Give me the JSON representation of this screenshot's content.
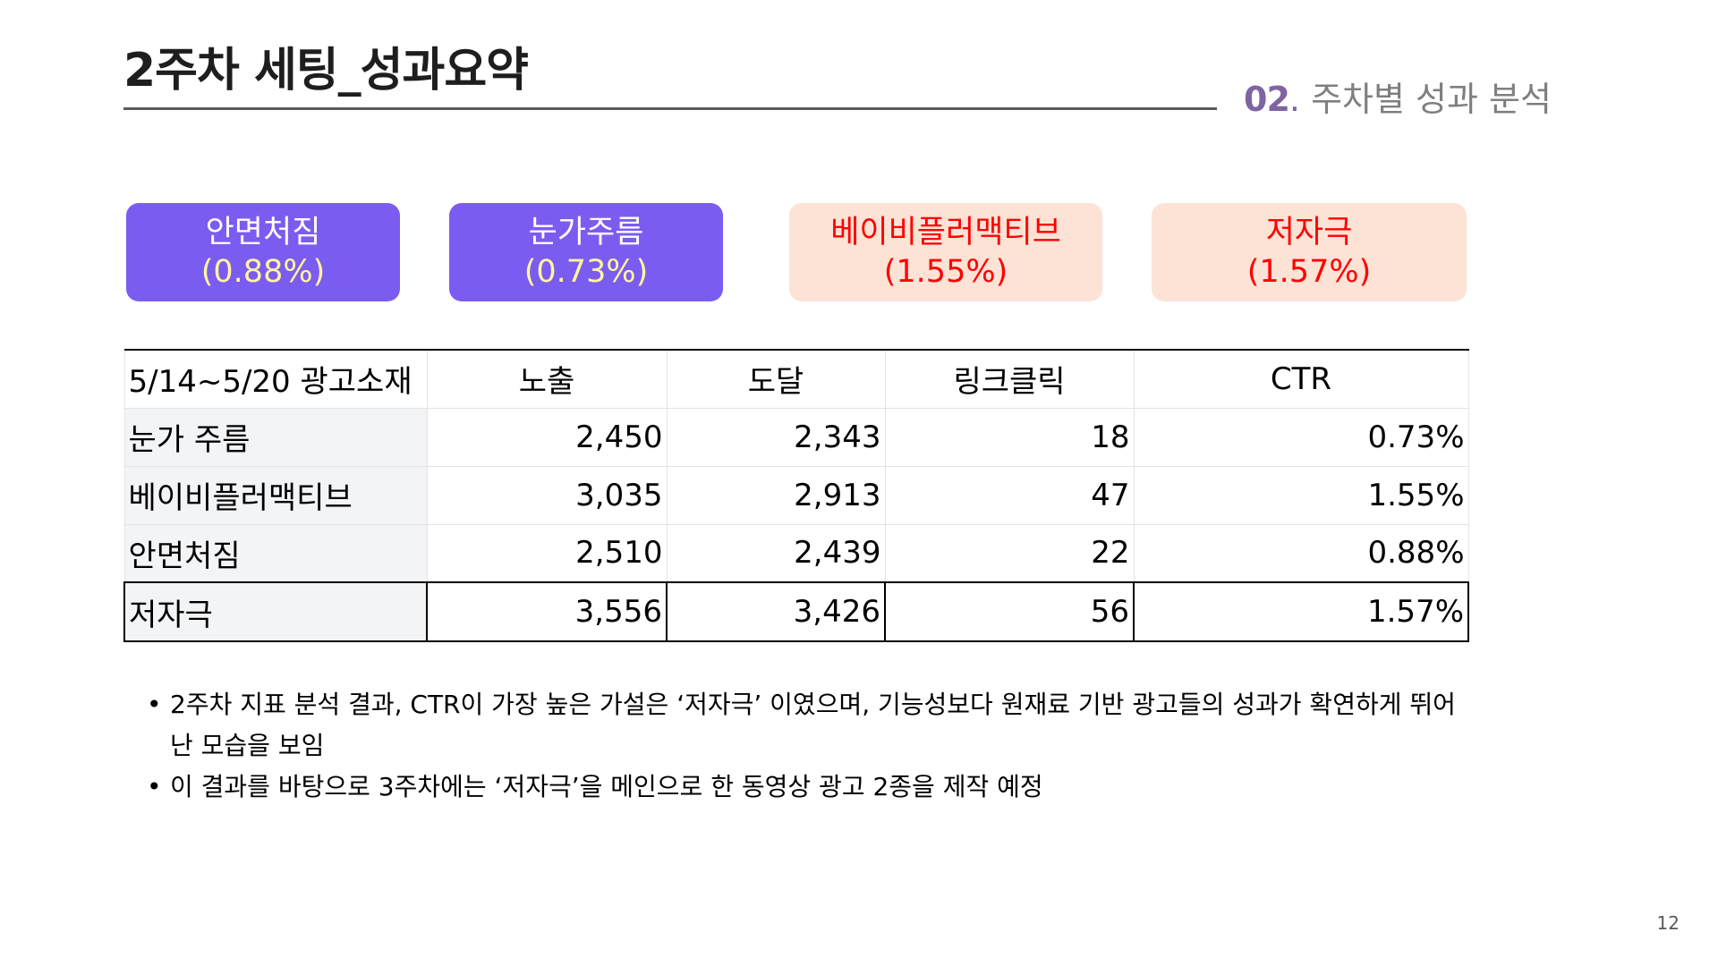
{
  "slide": {
    "title": "2주차 세팅_성과요약",
    "section_number": "02",
    "section_dot": ".",
    "section_title": "주차별 성과 분석",
    "page_number": "12"
  },
  "cards": [
    {
      "name": "안면처짐",
      "pct": "(0.88%)",
      "style": "purple",
      "bg_color": "#7b5cf0"
    },
    {
      "name": "눈가주름",
      "pct": "(0.73%)",
      "style": "purple",
      "bg_color": "#7b5cf0"
    },
    {
      "name": "베이비플러맥티브",
      "pct": "(1.55%)",
      "style": "peach",
      "bg_color": "#fce3d6"
    },
    {
      "name": "저자극",
      "pct": "(1.57%)",
      "style": "peach",
      "bg_color": "#fce3d6"
    }
  ],
  "table": {
    "headers": [
      "5/14~5/20 광고소재",
      "노출",
      "도달",
      "링크클릭",
      "CTR"
    ],
    "rows": [
      [
        "눈가 주름",
        "2,450",
        "2,343",
        "18",
        "0.73%"
      ],
      [
        "베이비플러맥티브",
        "3,035",
        "2,913",
        "47",
        "1.55%"
      ],
      [
        "안면처짐",
        "2,510",
        "2,439",
        "22",
        "0.88%"
      ],
      [
        "저자극",
        "3,556",
        "3,426",
        "56",
        "1.57%"
      ]
    ]
  },
  "bullets": [
    "2주차 지표 분석 결과, CTR이 가장 높은 가설은 ‘저자극’ 이였으며,  기능성보다 원재료 기반 광고들의 성과가 확연하게 뛰어난 모습을 보임",
    "이 결과를 바탕으로 3주차에는 ‘저자극’을 메인으로 한 동영상 광고 2종을 제작 예정"
  ],
  "bullet_marker": "•",
  "colors": {
    "accent_purple": "#8064a2",
    "card_purple": "#7b5cf0",
    "card_peach": "#fce3d6",
    "highlight_red": "#ff0000",
    "highlight_yellow": "#fff59d"
  }
}
